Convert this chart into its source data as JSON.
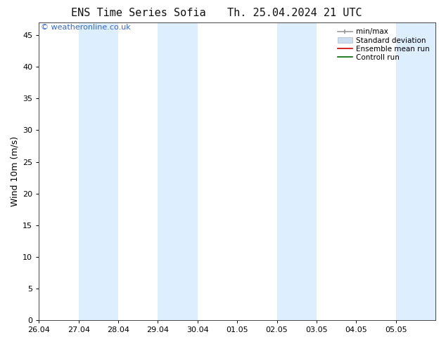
{
  "title_left": "ENS Time Series Sofia",
  "title_right": "Th. 25.04.2024 21 UTC",
  "ylabel": "Wind 10m (m/s)",
  "watermark": "© weatheronline.co.uk",
  "xlim_start": 0,
  "xlim_end": 10,
  "ylim": [
    0,
    47
  ],
  "yticks": [
    0,
    5,
    10,
    15,
    20,
    25,
    30,
    35,
    40,
    45
  ],
  "xtick_labels": [
    "26.04",
    "27.04",
    "28.04",
    "29.04",
    "30.04",
    "01.05",
    "02.05",
    "03.05",
    "04.05",
    "05.05"
  ],
  "shaded_bands": [
    [
      1,
      2
    ],
    [
      3,
      4
    ],
    [
      6,
      7
    ],
    [
      9,
      10
    ]
  ],
  "shade_color": "#ddeeff",
  "bg_color": "#ffffff",
  "title_fontsize": 11,
  "axis_fontsize": 9,
  "tick_fontsize": 8,
  "watermark_color": "#3366cc",
  "watermark_fontsize": 8,
  "legend_fontsize": 7.5
}
